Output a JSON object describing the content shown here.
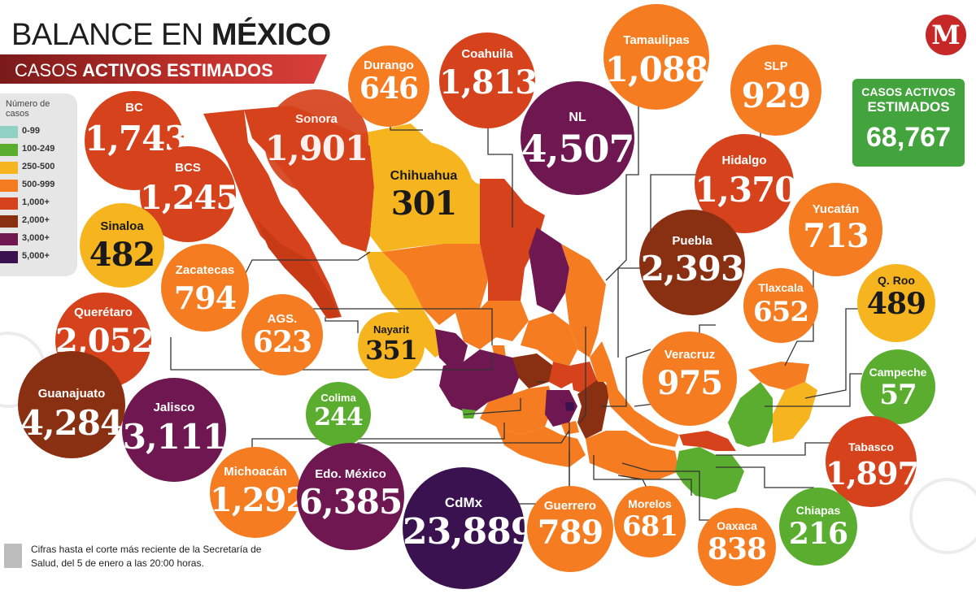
{
  "header": {
    "title_light": "BALANCE EN ",
    "title_bold": "MÉXICO",
    "subtitle_light": "CASOS ",
    "subtitle_bold": "ACTIVOS ESTIMADOS"
  },
  "logo": {
    "letter": "M"
  },
  "total": {
    "label_line1": "CASOS ACTIVOS",
    "label_line2": "ESTIMADOS",
    "value": "68,767"
  },
  "legend": {
    "title": "Número de casos",
    "items": [
      {
        "label": "0-99",
        "color": "#8fd1c4"
      },
      {
        "label": "100-249",
        "color": "#5aad2e"
      },
      {
        "label": "250-500",
        "color": "#f6b51e"
      },
      {
        "label": "500-999",
        "color": "#f57c20"
      },
      {
        "label": "1,000+",
        "color": "#d6421b"
      },
      {
        "label": "2,000+",
        "color": "#8a3012"
      },
      {
        "label": "3,000+",
        "color": "#6e1750"
      },
      {
        "label": "5,000+",
        "color": "#3b1250"
      }
    ]
  },
  "states": [
    {
      "name": "BC",
      "value": "1,743",
      "color": "#d6421b"
    },
    {
      "name": "Sonora",
      "value": "1,901",
      "color": "#d6421b"
    },
    {
      "name": "Durango",
      "value": "646",
      "color": "#f57c20"
    },
    {
      "name": "Coahuila",
      "value": "1,813",
      "color": "#d6421b"
    },
    {
      "name": "Tamaulipas",
      "value": "1,088",
      "color": "#f57c20"
    },
    {
      "name": "SLP",
      "value": "929",
      "color": "#f57c20"
    },
    {
      "name": "BCS",
      "value": "1,245",
      "color": "#d6421b"
    },
    {
      "name": "Chihuahua",
      "value": "301",
      "color": "#f6b51e"
    },
    {
      "name": "NL",
      "value": "4,507",
      "color": "#6e1750"
    },
    {
      "name": "Hidalgo",
      "value": "1,370",
      "color": "#d6421b"
    },
    {
      "name": "Yucatán",
      "value": "713",
      "color": "#f57c20"
    },
    {
      "name": "Sinaloa",
      "value": "482",
      "color": "#f6b51e"
    },
    {
      "name": "Zacatecas",
      "value": "794",
      "color": "#f57c20"
    },
    {
      "name": "Puebla",
      "value": "2,393",
      "color": "#8a3012"
    },
    {
      "name": "Querétaro",
      "value": "2,052",
      "color": "#d6421b"
    },
    {
      "name": "AGS.",
      "value": "623",
      "color": "#f57c20"
    },
    {
      "name": "Nayarit",
      "value": "351",
      "color": "#f6b51e"
    },
    {
      "name": "Tlaxcala",
      "value": "652",
      "color": "#f57c20"
    },
    {
      "name": "Q. Roo",
      "value": "489",
      "color": "#f6b51e"
    },
    {
      "name": "Veracruz",
      "value": "975",
      "color": "#f57c20"
    },
    {
      "name": "Campeche",
      "value": "57",
      "color": "#5aad2e"
    },
    {
      "name": "Guanajuato",
      "value": "4,284",
      "color": "#8a3012"
    },
    {
      "name": "Jalisco",
      "value": "3,111",
      "color": "#6e1750"
    },
    {
      "name": "Colima",
      "value": "244",
      "color": "#5aad2e"
    },
    {
      "name": "Tabasco",
      "value": "1,897",
      "color": "#d6421b"
    },
    {
      "name": "Michoacán",
      "value": "1,292",
      "color": "#f57c20"
    },
    {
      "name": "Edo. México",
      "value": "6,385",
      "color": "#6e1750"
    },
    {
      "name": "CdMx",
      "value": "23,889",
      "color": "#3b1250"
    },
    {
      "name": "Guerrero",
      "value": "789",
      "color": "#f57c20"
    },
    {
      "name": "Morelos",
      "value": "681",
      "color": "#f57c20"
    },
    {
      "name": "Oaxaca",
      "value": "838",
      "color": "#f57c20"
    },
    {
      "name": "Chiapas",
      "value": "216",
      "color": "#5aad2e"
    }
  ],
  "footnote": "Cifras hasta el corte más reciente de la Secretaría de Salud, del 5 de enero a las 20:00 horas."
}
